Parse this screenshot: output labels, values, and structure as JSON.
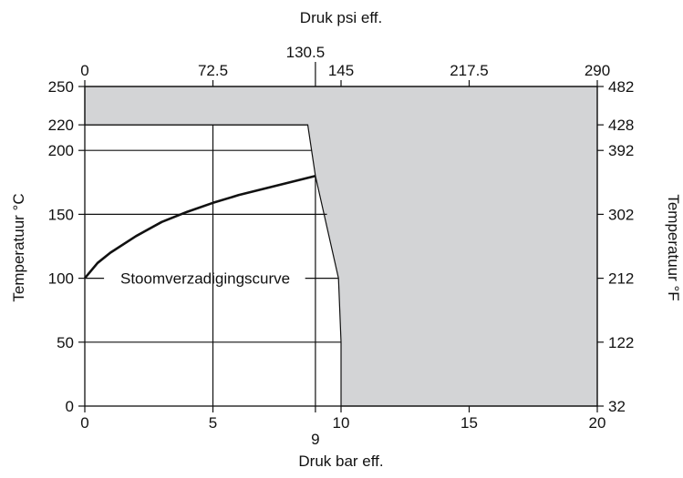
{
  "chart_data": {
    "type": "area",
    "colors": {
      "region_fill": "#d3d4d6",
      "line": "#111111",
      "background": "#ffffff"
    },
    "x_bottom": {
      "label": "Druk bar eff.",
      "range": [
        0,
        20
      ],
      "ticks": [
        {
          "value": 0,
          "label": "0"
        },
        {
          "value": 5,
          "label": "5"
        },
        {
          "value": 10,
          "label": "10"
        },
        {
          "value": 15,
          "label": "15"
        },
        {
          "value": 20,
          "label": "20"
        }
      ],
      "extra_ticks": [
        {
          "value": 9,
          "label": "9"
        }
      ]
    },
    "x_top": {
      "label": "Druk psi eff.",
      "range": [
        0,
        290
      ],
      "ticks": [
        {
          "value": 0,
          "label": "0"
        },
        {
          "value": 72.5,
          "label": "72.5"
        },
        {
          "value": 145,
          "label": "145"
        },
        {
          "value": 217.5,
          "label": "217.5"
        },
        {
          "value": 290,
          "label": "290"
        }
      ],
      "extra_ticks": [
        {
          "value": 130.5,
          "label": "130.5"
        }
      ]
    },
    "y_left": {
      "label": "Temperatuur °C",
      "range": [
        0,
        250
      ],
      "ticks": [
        {
          "value": 0,
          "label": "0"
        },
        {
          "value": 50,
          "label": "50"
        },
        {
          "value": 100,
          "label": "100"
        },
        {
          "value": 150,
          "label": "150"
        },
        {
          "value": 200,
          "label": "200"
        },
        {
          "value": 220,
          "label": "220"
        },
        {
          "value": 250,
          "label": "250"
        }
      ]
    },
    "y_right": {
      "label": "Temperatuur °F",
      "ticks": [
        {
          "at_c": 0,
          "label": "32"
        },
        {
          "at_c": 50,
          "label": "122"
        },
        {
          "at_c": 100,
          "label": "212"
        },
        {
          "at_c": 150,
          "label": "302"
        },
        {
          "at_c": 200,
          "label": "392"
        },
        {
          "at_c": 220,
          "label": "428"
        },
        {
          "at_c": 250,
          "label": "482"
        }
      ]
    },
    "region_boundary": [
      [
        0,
        250
      ],
      [
        20,
        250
      ],
      [
        20,
        0
      ],
      [
        10,
        0
      ],
      [
        10,
        50
      ],
      [
        9.9,
        100
      ],
      [
        9,
        180
      ],
      [
        8.7,
        220
      ],
      [
        0,
        220
      ]
    ],
    "series": [
      {
        "name": "Stoomverzadigingscurve",
        "x": [
          0,
          0.5,
          1,
          2,
          3,
          4,
          5,
          6,
          7,
          8,
          9
        ],
        "y": [
          100,
          112,
          120,
          133,
          144,
          152,
          159,
          165,
          170,
          175,
          180
        ]
      }
    ],
    "annotation": {
      "text": "Stoomverzadigingscurve",
      "x": 4.7,
      "y": 100
    },
    "grid": true
  }
}
